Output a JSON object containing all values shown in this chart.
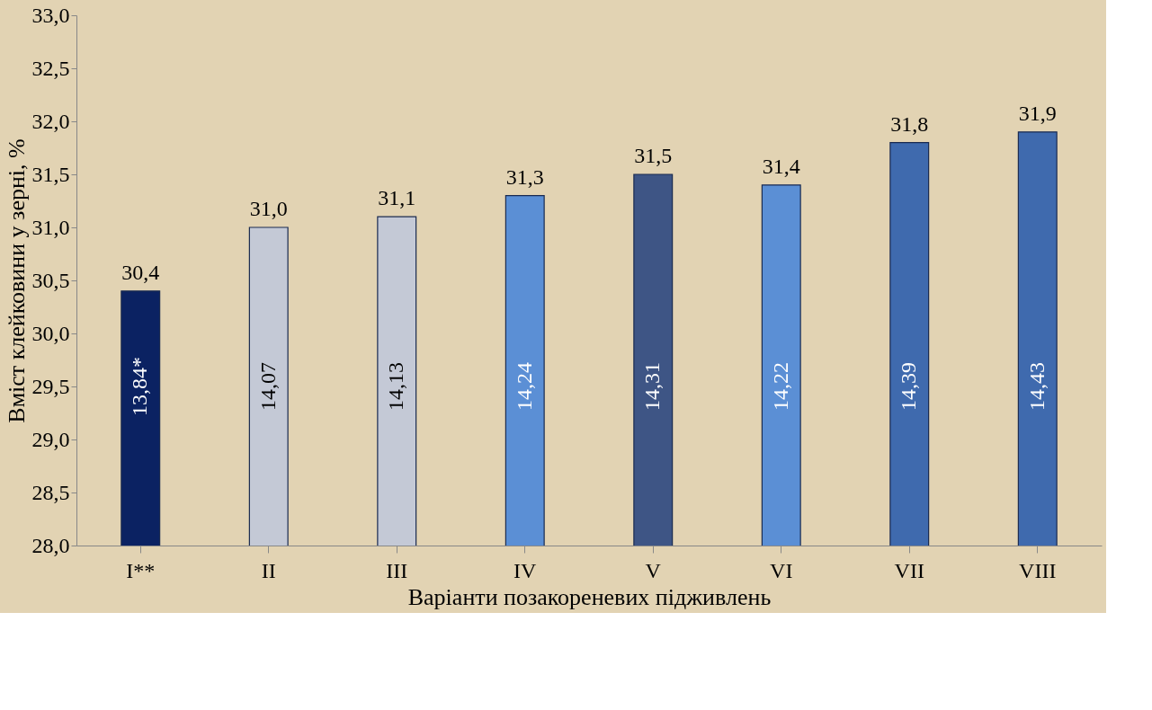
{
  "chart_data": {
    "type": "bar",
    "xlabel": "Варіанти позакореневих підживлень",
    "ylabel": "Вміст клейковини у зерні, %",
    "categories": [
      "I**",
      "II",
      "III",
      "IV",
      "V",
      "VI",
      "VII",
      "VIII"
    ],
    "values": [
      30.4,
      31.0,
      31.1,
      31.3,
      31.5,
      31.4,
      31.8,
      31.9
    ],
    "value_labels": [
      "30,4",
      "31,0",
      "31,1",
      "31,3",
      "31,5",
      "31,4",
      "31,8",
      "31,9"
    ],
    "colors": [
      "#0b2262",
      "#c4c9d6",
      "#c4c9d6",
      "#5b8fd5",
      "#3e5585",
      "#5b8fd5",
      "#3f6aae",
      "#3f6aae"
    ],
    "ylim": [
      28,
      33
    ],
    "yticks": [
      {
        "value": 28,
        "label": "28,0"
      },
      {
        "value": 28.5,
        "label": "28,5"
      },
      {
        "value": 29,
        "label": "29,0"
      },
      {
        "value": 29.5,
        "label": "29,5"
      },
      {
        "value": 30,
        "label": "30,0"
      },
      {
        "value": 30.5,
        "label": "30,5"
      },
      {
        "value": 31,
        "label": "31,0"
      },
      {
        "value": 31.5,
        "label": "31,5"
      },
      {
        "value": 32,
        "label": "32,0"
      },
      {
        "value": 32.5,
        "label": "32,5"
      },
      {
        "value": 33,
        "label": "33,0"
      }
    ],
    "annotations": [
      "13,84*",
      "14,07",
      "14,13",
      "14,24",
      "14,31",
      "14,22",
      "14,39",
      "14,43"
    ],
    "grid": false
  }
}
